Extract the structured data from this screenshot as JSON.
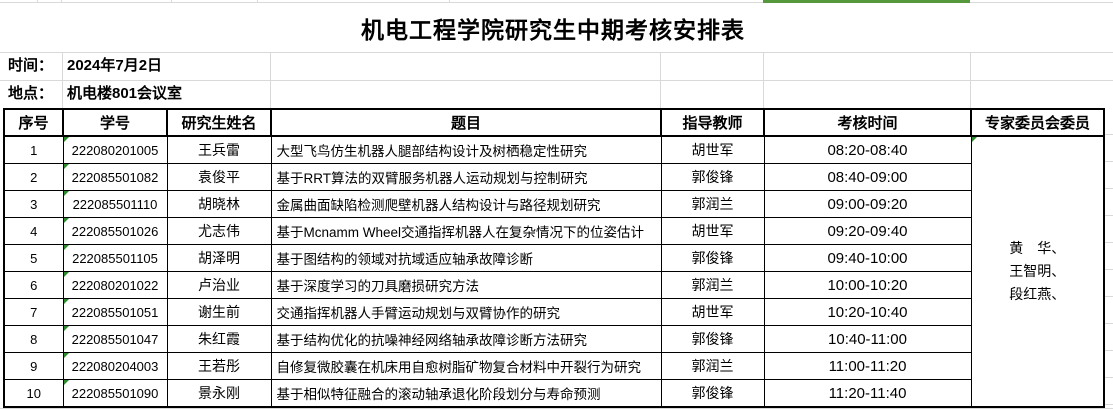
{
  "title": "机电工程学院研究生中期考核安排表",
  "info": {
    "time_label": "时间：",
    "time_value": "2024年7月2日",
    "place_label": "地点：",
    "place_value": "机电楼801会议室"
  },
  "table": {
    "headers": [
      "序号",
      "学号",
      "研究生姓名",
      "题目",
      "指导教师",
      "考核时间",
      "专家委员会委员"
    ],
    "rows": [
      {
        "no": "1",
        "student_id": "222080201005",
        "name": "王兵雷",
        "topic": "大型飞鸟仿生机器人腿部结构设计及树栖稳定性研究",
        "advisor": "胡世军",
        "time": "08:20-08:40"
      },
      {
        "no": "2",
        "student_id": "222085501082",
        "name": "袁俊平",
        "topic": "基于RRT算法的双臂服务机器人运动规划与控制研究",
        "advisor": "郭俊锋",
        "time": "08:40-09:00"
      },
      {
        "no": "3",
        "student_id": "222085501110",
        "name": "胡晓林",
        "topic": "金属曲面缺陷检测爬壁机器人结构设计与路径规划研究",
        "advisor": "郭润兰",
        "time": "09:00-09:20"
      },
      {
        "no": "4",
        "student_id": "222085501026",
        "name": "尤志伟",
        "topic": "基于Mcnamm Wheel交通指挥机器人在复杂情况下的位姿估计",
        "advisor": "胡世军",
        "time": "09:20-09:40"
      },
      {
        "no": "5",
        "student_id": "222085501105",
        "name": "胡泽明",
        "topic": "基于图结构的领域对抗域适应轴承故障诊断",
        "advisor": "郭俊锋",
        "time": "09:40-10:00"
      },
      {
        "no": "6",
        "student_id": "222080201022",
        "name": "卢治业",
        "topic": "基于深度学习的刀具磨损研究方法",
        "advisor": "郭润兰",
        "time": "10:00-10:20"
      },
      {
        "no": "7",
        "student_id": "222085501051",
        "name": "谢生前",
        "topic": "交通指挥机器人手臂运动规划与双臂协作的研究",
        "advisor": "胡世军",
        "time": "10:20-10:40"
      },
      {
        "no": "8",
        "student_id": "222085501047",
        "name": "朱红霞",
        "topic": "基于结构优化的抗噪神经网络轴承故障诊断方法研究",
        "advisor": "郭俊锋",
        "time": "10:40-11:00"
      },
      {
        "no": "9",
        "student_id": "222080204003",
        "name": "王若彤",
        "topic": "自修复微胶囊在机床用自愈树脂矿物复合材料中开裂行为研究",
        "advisor": "郭润兰",
        "time": "11:00-11:20"
      },
      {
        "no": "10",
        "student_id": "222085501090",
        "name": "景永刚",
        "topic": "基于相似特征融合的滚动轴承退化阶段划分与寿命预测",
        "advisor": "郭俊锋",
        "time": "11:20-11:40"
      }
    ],
    "committee_lines": [
      "黄　华、",
      "王智明、",
      "段红燕、"
    ]
  },
  "colors": {
    "column_indicator_green": "#56993d",
    "error_triangle_green": "#2e8b2e",
    "table_border": "#000000",
    "gridline_gray": "#d9d9d9",
    "background": "#ffffff",
    "text": "#000000"
  }
}
